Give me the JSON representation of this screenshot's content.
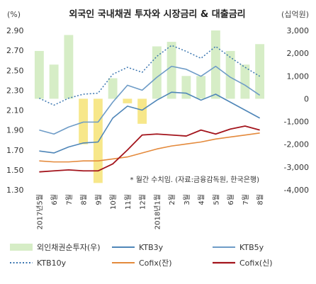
{
  "chart_data": {
    "type": "bar+line",
    "title": "외국인 국내채권 투자와 시장금리 & 대출금리",
    "left_unit": "(%)",
    "right_unit": "(십억원)",
    "note": "* 월간 수치임. (자료:금융감독원, 한국은행)",
    "categories": [
      "2017년5월",
      "6월",
      "7월",
      "8월",
      "9월",
      "10월",
      "11월",
      "12월",
      "2018년1월",
      "2월",
      "3월",
      "4월",
      "5월",
      "6월",
      "7월",
      "8월"
    ],
    "left_axis": {
      "min": 1.3,
      "max": 2.9,
      "ticks": [
        "2.90",
        "2.70",
        "2.50",
        "2.30",
        "2.10",
        "1.90",
        "1.70",
        "1.50",
        "1.30"
      ]
    },
    "right_axis": {
      "min": -4000,
      "max": 3000,
      "ticks": [
        "3,000",
        "2,000",
        "1,000",
        "0",
        "-1,000",
        "-2,000",
        "-3,000",
        "-4,000"
      ]
    },
    "bar_colors": {
      "positive": "#d6edc6",
      "negative": "#f7e78a"
    },
    "series": [
      {
        "name": "외인채권순투자(우)",
        "type": "bar",
        "axis": "right",
        "color": "#d6edc6",
        "values": [
          2100,
          1500,
          2800,
          -2000,
          -3700,
          900,
          -200,
          -1100,
          2300,
          2500,
          1000,
          1000,
          3000,
          2100,
          1500,
          2400
        ]
      },
      {
        "name": "KTB3y",
        "type": "line",
        "axis": "left",
        "color": "#4f86b8",
        "dash": false,
        "width": 1.6,
        "values": [
          1.69,
          1.67,
          1.73,
          1.77,
          1.78,
          2.02,
          2.14,
          2.1,
          2.2,
          2.28,
          2.27,
          2.2,
          2.26,
          2.18,
          2.1,
          2.02
        ]
      },
      {
        "name": "KTB5y",
        "type": "line",
        "axis": "left",
        "color": "#6e9cc7",
        "dash": false,
        "width": 1.6,
        "values": [
          1.9,
          1.86,
          1.93,
          1.98,
          1.98,
          2.18,
          2.35,
          2.3,
          2.43,
          2.54,
          2.51,
          2.44,
          2.54,
          2.43,
          2.35,
          2.25
        ]
      },
      {
        "name": "KTB10y",
        "type": "line",
        "axis": "left",
        "color": "#3b76b0",
        "dash": true,
        "width": 1.5,
        "values": [
          2.22,
          2.15,
          2.22,
          2.26,
          2.27,
          2.46,
          2.53,
          2.48,
          2.64,
          2.75,
          2.69,
          2.62,
          2.74,
          2.63,
          2.53,
          2.44
        ]
      },
      {
        "name": "Cofix(잔)",
        "type": "line",
        "axis": "left",
        "color": "#e48a3c",
        "dash": false,
        "width": 1.6,
        "values": [
          1.59,
          1.58,
          1.58,
          1.59,
          1.59,
          1.61,
          1.63,
          1.67,
          1.71,
          1.74,
          1.76,
          1.78,
          1.81,
          1.83,
          1.85,
          1.87
        ]
      },
      {
        "name": "Cofix(신)",
        "type": "line",
        "axis": "left",
        "color": "#a3141c",
        "dash": false,
        "width": 1.8,
        "values": [
          1.48,
          1.49,
          1.5,
          1.49,
          1.49,
          1.56,
          1.7,
          1.85,
          1.86,
          1.85,
          1.84,
          1.9,
          1.86,
          1.91,
          1.94,
          1.9
        ]
      }
    ]
  }
}
